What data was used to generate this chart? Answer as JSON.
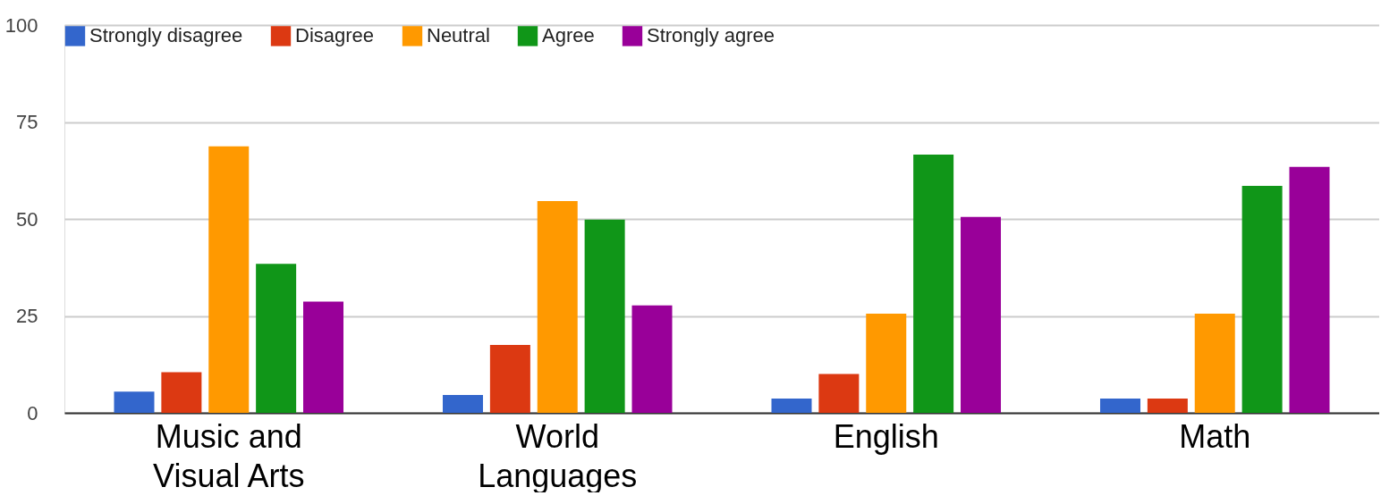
{
  "chart_data": {
    "type": "bar",
    "categories": [
      "Music and\nVisual Arts",
      "World\nLanguages",
      "English",
      "Math"
    ],
    "series": [
      {
        "name": "Strongly disagree",
        "color": "#3366cc",
        "values": [
          5.5,
          4.6,
          3.7,
          3.7
        ]
      },
      {
        "name": "Disagree",
        "color": "#dc3912",
        "values": [
          10.5,
          17.5,
          10,
          3.7
        ]
      },
      {
        "name": "Neutral",
        "color": "#ff9900",
        "values": [
          68.7,
          54.6,
          25.6,
          25.6
        ]
      },
      {
        "name": "Agree",
        "color": "#109618",
        "values": [
          38.4,
          49.8,
          66.6,
          58.5
        ]
      },
      {
        "name": "Strongly agree",
        "color": "#990099",
        "values": [
          28.7,
          27.7,
          50.5,
          63.4
        ]
      }
    ],
    "ylim": [
      0,
      100
    ],
    "yticks": [
      0,
      25,
      50,
      75,
      100
    ],
    "grid": "y",
    "legend": "top left"
  }
}
